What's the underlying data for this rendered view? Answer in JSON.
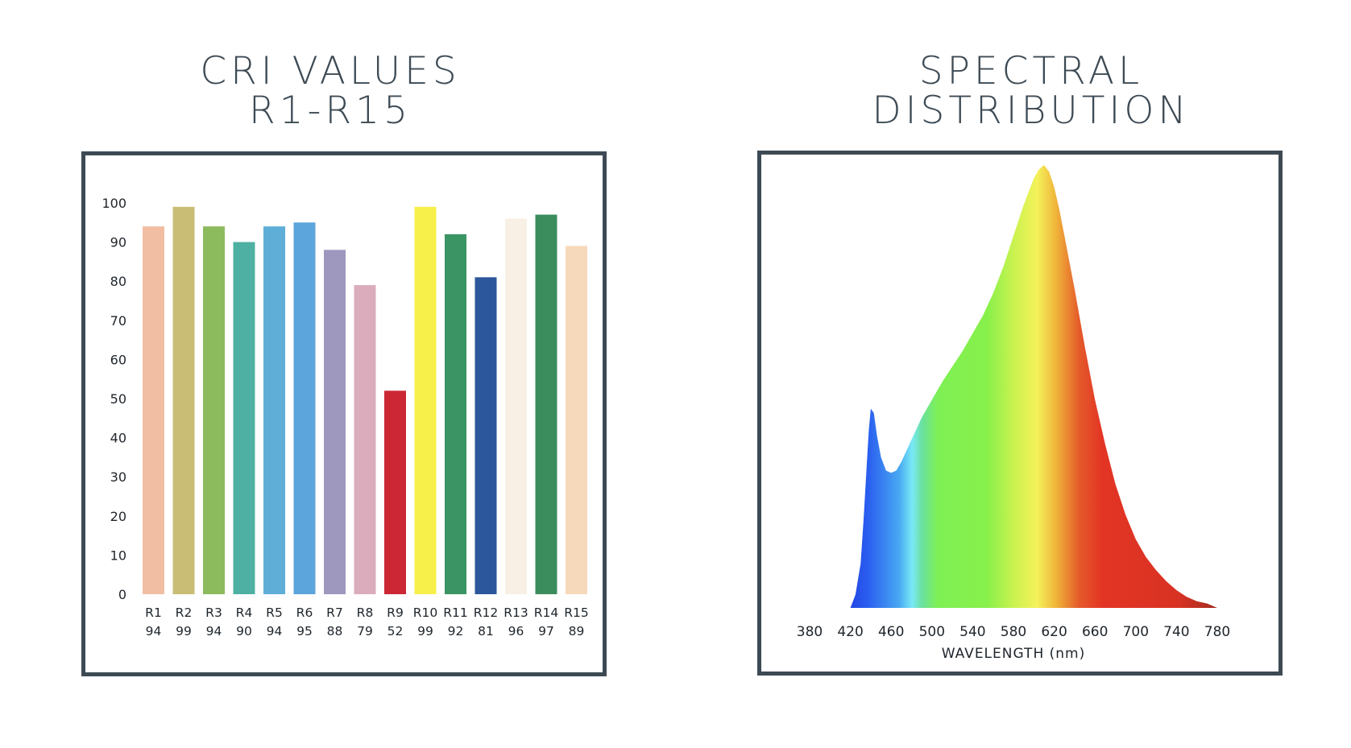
{
  "cri_title": {
    "line1": "CRI VALUES",
    "line2": "R1-R15"
  },
  "spd_title": {
    "line1": "SPECTRAL",
    "line2": "DISTRIBUTION"
  },
  "chart_data": [
    {
      "type": "bar",
      "categories": [
        "R1",
        "R2",
        "R3",
        "R4",
        "R5",
        "R6",
        "R7",
        "R8",
        "R9",
        "R10",
        "R11",
        "R12",
        "R13",
        "R14",
        "R15"
      ],
      "values": [
        94,
        99,
        94,
        90,
        94,
        95,
        88,
        79,
        52,
        99,
        92,
        81,
        96,
        97,
        89
      ],
      "colors": [
        "#f1bea3",
        "#c9bd76",
        "#8cbb5e",
        "#4eb0a2",
        "#5eaed8",
        "#5ca4dc",
        "#9e98bf",
        "#dbadbc",
        "#cc2734",
        "#f7f04a",
        "#3b9464",
        "#2d579c",
        "#f8f0e4",
        "#3b8d5e",
        "#f6d9bb"
      ],
      "ylim": [
        0,
        100
      ],
      "yticks": [
        0,
        10,
        20,
        30,
        40,
        50,
        60,
        70,
        80,
        90,
        100
      ]
    },
    {
      "type": "area",
      "xlabel": "WAVELENGTH (nm)",
      "xticks": [
        380,
        420,
        460,
        500,
        540,
        580,
        620,
        660,
        700,
        740,
        780
      ],
      "xlim": [
        380,
        780
      ],
      "ylim": [
        0,
        1
      ],
      "x": [
        420,
        425,
        430,
        433,
        436,
        438,
        440,
        443,
        446,
        450,
        455,
        460,
        465,
        470,
        480,
        490,
        500,
        510,
        520,
        530,
        540,
        550,
        560,
        570,
        580,
        590,
        600,
        605,
        610,
        615,
        620,
        625,
        630,
        640,
        650,
        660,
        670,
        680,
        690,
        700,
        710,
        720,
        730,
        740,
        750,
        760,
        770,
        780
      ],
      "y": [
        0.0,
        0.03,
        0.1,
        0.2,
        0.32,
        0.4,
        0.45,
        0.44,
        0.39,
        0.34,
        0.31,
        0.305,
        0.31,
        0.33,
        0.38,
        0.43,
        0.47,
        0.51,
        0.545,
        0.58,
        0.62,
        0.66,
        0.71,
        0.77,
        0.84,
        0.91,
        0.97,
        0.99,
        1.0,
        0.985,
        0.95,
        0.9,
        0.84,
        0.72,
        0.59,
        0.47,
        0.37,
        0.28,
        0.21,
        0.155,
        0.115,
        0.085,
        0.06,
        0.04,
        0.025,
        0.015,
        0.01,
        0.0
      ]
    }
  ]
}
